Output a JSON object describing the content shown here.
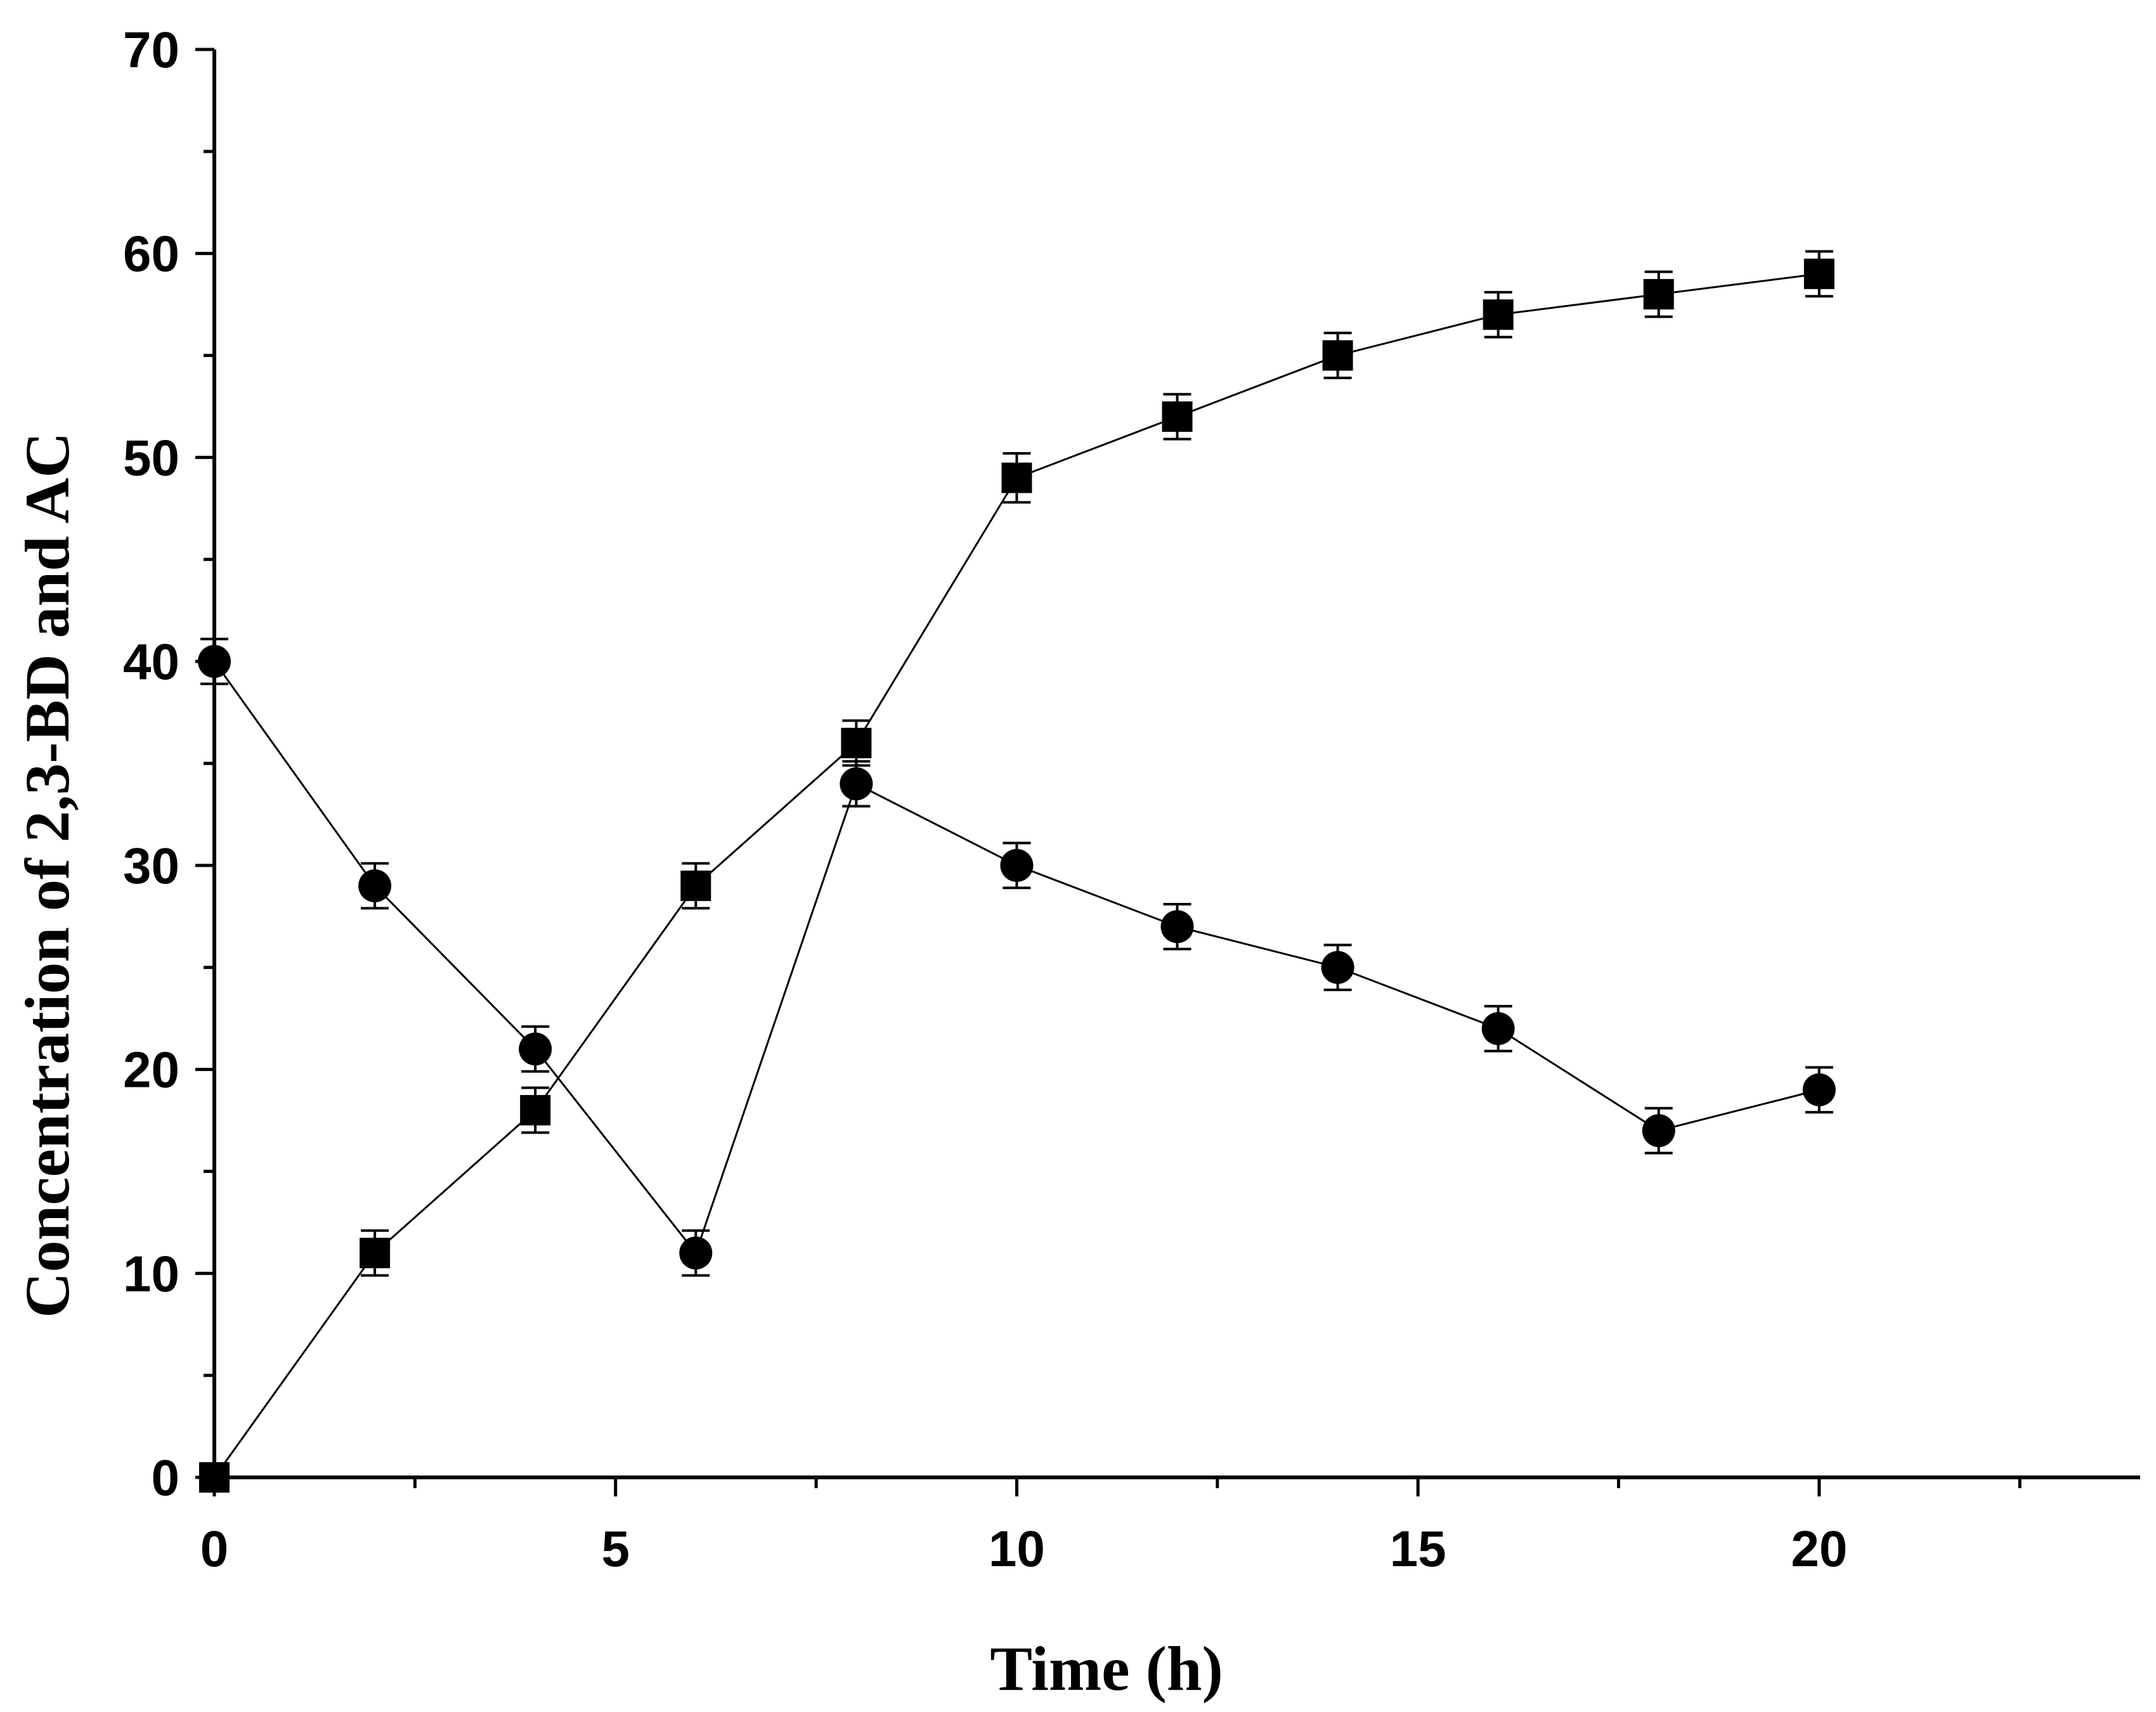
{
  "chart_data": {
    "type": "line",
    "title": "",
    "xlabel": "Time (h)",
    "ylabel": "Concentration of 2,3-BD and AC",
    "xlim": [
      0,
      24
    ],
    "ylim": [
      0,
      70
    ],
    "grid": false,
    "x_major_ticks": [
      0,
      5,
      10,
      15,
      20
    ],
    "x_minor_ticks": [
      2.5,
      7.5,
      12.5,
      17.5,
      22.5
    ],
    "y_major_ticks": [
      0,
      10,
      20,
      30,
      40,
      50,
      60,
      70
    ],
    "y_minor_ticks": [
      5,
      15,
      25,
      35,
      45,
      55,
      65
    ],
    "x_tick_labels": [
      "0",
      "5",
      "10",
      "15",
      "20"
    ],
    "y_tick_labels": [
      "0",
      "10",
      "20",
      "30",
      "40",
      "50",
      "60",
      "70"
    ],
    "x": [
      0,
      2,
      4,
      6,
      8,
      10,
      12,
      14,
      16,
      18,
      20
    ],
    "series": [
      {
        "name": "2,3-BD",
        "marker": "square",
        "color": "#000000",
        "values": [
          0,
          11,
          18,
          29,
          36,
          49,
          52,
          55,
          57,
          58,
          59
        ],
        "errors": [
          0.5,
          1.1,
          1.1,
          1.1,
          1.1,
          1.2,
          1.1,
          1.1,
          1.1,
          1.1,
          1.1
        ]
      },
      {
        "name": "AC",
        "marker": "circle",
        "color": "#000000",
        "values": [
          40,
          29,
          21,
          11,
          34,
          30,
          27,
          25,
          22,
          17,
          19
        ],
        "errors": [
          1.1,
          1.1,
          1.1,
          1.1,
          1.1,
          1.1,
          1.1,
          1.1,
          1.1,
          1.1,
          1.1
        ]
      }
    ]
  }
}
